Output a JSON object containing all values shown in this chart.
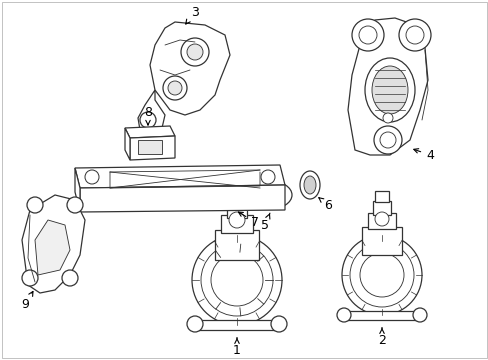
{
  "background_color": "#ffffff",
  "label_color": "#000000",
  "line_color": "#333333",
  "fig_width": 4.89,
  "fig_height": 3.6,
  "dpi": 100,
  "image_b64": ""
}
